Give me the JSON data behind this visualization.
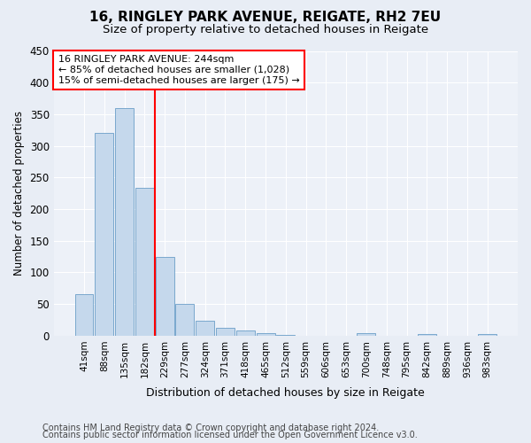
{
  "title1": "16, RINGLEY PARK AVENUE, REIGATE, RH2 7EU",
  "title2": "Size of property relative to detached houses in Reigate",
  "xlabel": "Distribution of detached houses by size in Reigate",
  "ylabel": "Number of detached properties",
  "categories": [
    "41sqm",
    "88sqm",
    "135sqm",
    "182sqm",
    "229sqm",
    "277sqm",
    "324sqm",
    "371sqm",
    "418sqm",
    "465sqm",
    "512sqm",
    "559sqm",
    "606sqm",
    "653sqm",
    "700sqm",
    "748sqm",
    "795sqm",
    "842sqm",
    "889sqm",
    "936sqm",
    "983sqm"
  ],
  "values": [
    65,
    320,
    360,
    233,
    125,
    50,
    24,
    13,
    8,
    4,
    1,
    0,
    0,
    0,
    4,
    0,
    0,
    3,
    0,
    0,
    3
  ],
  "bar_color": "#c5d8ec",
  "bar_edge_color": "#6b9ec8",
  "vline_x": 3.5,
  "annotation_line1": "16 RINGLEY PARK AVENUE: 244sqm",
  "annotation_line2": "← 85% of detached houses are smaller (1,028)",
  "annotation_line3": "15% of semi-detached houses are larger (175) →",
  "ylim": [
    0,
    450
  ],
  "yticks": [
    0,
    50,
    100,
    150,
    200,
    250,
    300,
    350,
    400,
    450
  ],
  "footer1": "Contains HM Land Registry data © Crown copyright and database right 2024.",
  "footer2": "Contains public sector information licensed under the Open Government Licence v3.0.",
  "fig_bg_color": "#e8edf5",
  "plot_bg_color": "#edf1f8"
}
